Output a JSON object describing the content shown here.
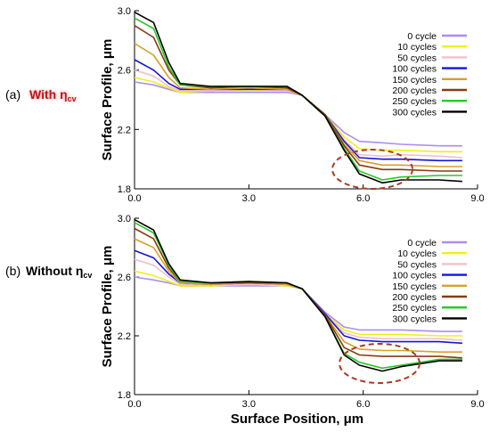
{
  "panel_labels": [
    {
      "letter": "(a)",
      "text": "With η",
      "sub": "cv"
    },
    {
      "letter": "(b)",
      "text": "Without η",
      "sub": "cv"
    }
  ],
  "colors": {
    "0 cycle": "#a98ef0",
    "10 cycles": "#f2ee17",
    "50 cycles": "#f0c0c8",
    "100 cycles": "#1414d8",
    "150 cycles": "#d8a028",
    "200 cycles": "#8a3a10",
    "250 cycles": "#28c828",
    "300 cycles": "#000000",
    "ellipse": "#a83c1e"
  },
  "chart_data": [
    {
      "type": "line",
      "panel": "(a)",
      "ylabel": "Surface Profile, μm",
      "xlabel": "",
      "xlim": [
        0,
        9
      ],
      "ylim": [
        1.8,
        3.0
      ],
      "xticks": [
        "0.0",
        "3.0",
        "6.0",
        "9.0"
      ],
      "yticks": [
        "1.8",
        "2.2",
        "2.6",
        "3.0"
      ],
      "legend": "top-right",
      "annotation": "dashed ellipse around 5.7–7.4 μm",
      "series": [
        {
          "name": "0 cycle",
          "x": [
            0,
            0.5,
            0.9,
            1.2,
            2,
            3,
            4,
            4.4,
            5,
            5.5,
            5.9,
            6.5,
            7,
            8,
            8.6
          ],
          "y": [
            2.52,
            2.5,
            2.47,
            2.45,
            2.45,
            2.45,
            2.45,
            2.43,
            2.3,
            2.18,
            2.12,
            2.11,
            2.1,
            2.09,
            2.09
          ]
        },
        {
          "name": "10 cycles",
          "x": [
            0,
            0.5,
            0.9,
            1.2,
            2,
            3,
            4,
            4.4,
            5,
            5.5,
            5.9,
            6.5,
            7,
            8,
            8.6
          ],
          "y": [
            2.55,
            2.52,
            2.48,
            2.45,
            2.46,
            2.46,
            2.46,
            2.43,
            2.3,
            2.15,
            2.07,
            2.06,
            2.06,
            2.05,
            2.05
          ]
        },
        {
          "name": "50 cycles",
          "x": [
            0,
            0.5,
            0.9,
            1.2,
            2,
            3,
            4,
            4.4,
            5,
            5.5,
            5.9,
            6.5,
            7,
            8,
            8.6
          ],
          "y": [
            2.6,
            2.56,
            2.49,
            2.46,
            2.46,
            2.47,
            2.46,
            2.43,
            2.3,
            2.13,
            2.03,
            2.02,
            2.03,
            2.02,
            2.01
          ]
        },
        {
          "name": "100 cycles",
          "x": [
            0,
            0.5,
            0.9,
            1.2,
            2,
            3,
            4,
            4.4,
            5,
            5.5,
            5.9,
            6.5,
            7,
            8,
            8.6
          ],
          "y": [
            2.67,
            2.6,
            2.51,
            2.47,
            2.47,
            2.47,
            2.47,
            2.43,
            2.3,
            2.12,
            2.01,
            2.0,
            2.0,
            1.99,
            1.99
          ]
        },
        {
          "name": "150 cycles",
          "x": [
            0,
            0.5,
            0.9,
            1.2,
            2,
            3,
            4,
            4.4,
            5,
            5.5,
            5.9,
            6.5,
            7,
            8,
            8.6
          ],
          "y": [
            2.78,
            2.7,
            2.55,
            2.48,
            2.47,
            2.48,
            2.47,
            2.43,
            2.3,
            2.1,
            1.99,
            1.96,
            1.96,
            1.95,
            1.95
          ]
        },
        {
          "name": "200 cycles",
          "x": [
            0,
            0.5,
            0.9,
            1.2,
            2,
            3,
            4,
            4.4,
            5,
            5.5,
            5.9,
            6.5,
            7,
            8,
            8.6
          ],
          "y": [
            2.9,
            2.82,
            2.6,
            2.5,
            2.48,
            2.49,
            2.48,
            2.43,
            2.3,
            2.09,
            1.96,
            1.93,
            1.93,
            1.92,
            1.92
          ]
        },
        {
          "name": "250 cycles",
          "x": [
            0,
            0.5,
            0.9,
            1.2,
            2,
            3,
            4,
            4.4,
            5,
            5.5,
            5.9,
            6.5,
            7,
            8,
            8.6
          ],
          "y": [
            2.95,
            2.88,
            2.62,
            2.5,
            2.49,
            2.49,
            2.49,
            2.43,
            2.29,
            2.07,
            1.92,
            1.86,
            1.88,
            1.89,
            1.89
          ]
        },
        {
          "name": "300 cycles",
          "x": [
            0,
            0.5,
            0.9,
            1.2,
            2,
            3,
            4,
            4.4,
            5,
            5.5,
            5.9,
            6.5,
            7,
            8,
            8.6
          ],
          "y": [
            2.99,
            2.92,
            2.65,
            2.51,
            2.49,
            2.49,
            2.49,
            2.43,
            2.29,
            2.06,
            1.9,
            1.84,
            1.86,
            1.86,
            1.85
          ]
        }
      ]
    },
    {
      "type": "line",
      "panel": "(b)",
      "ylabel": "Surface Profile, μm",
      "xlabel": "Surface Position, μm",
      "xlim": [
        0,
        9
      ],
      "ylim": [
        1.8,
        3.0
      ],
      "xticks": [
        "0.0",
        "3.0",
        "6.0",
        "9.0"
      ],
      "yticks": [
        "1.8",
        "2.2",
        "2.6",
        "3.0"
      ],
      "legend": "top-right",
      "annotation": "dashed ellipse around 5.9–7.7 μm",
      "series": [
        {
          "name": "0 cycle",
          "x": [
            0,
            0.5,
            0.9,
            1.2,
            2,
            3,
            4,
            4.4,
            5,
            5.5,
            5.9,
            6.5,
            7,
            8,
            8.6
          ],
          "y": [
            2.6,
            2.58,
            2.56,
            2.54,
            2.54,
            2.54,
            2.54,
            2.52,
            2.36,
            2.26,
            2.24,
            2.24,
            2.24,
            2.23,
            2.23
          ]
        },
        {
          "name": "10 cycles",
          "x": [
            0,
            0.5,
            0.9,
            1.2,
            2,
            3,
            4,
            4.4,
            5,
            5.5,
            5.9,
            6.5,
            7,
            8,
            8.6
          ],
          "y": [
            2.64,
            2.61,
            2.57,
            2.54,
            2.54,
            2.55,
            2.54,
            2.52,
            2.35,
            2.24,
            2.21,
            2.21,
            2.21,
            2.2,
            2.2
          ]
        },
        {
          "name": "50 cycles",
          "x": [
            0,
            0.5,
            0.9,
            1.2,
            2,
            3,
            4,
            4.4,
            5,
            5.5,
            5.9,
            6.5,
            7,
            8,
            8.6
          ],
          "y": [
            2.72,
            2.68,
            2.6,
            2.55,
            2.55,
            2.55,
            2.55,
            2.52,
            2.35,
            2.22,
            2.19,
            2.18,
            2.18,
            2.18,
            2.17
          ]
        },
        {
          "name": "100 cycles",
          "x": [
            0,
            0.5,
            0.9,
            1.2,
            2,
            3,
            4,
            4.4,
            5,
            5.5,
            5.9,
            6.5,
            7,
            8,
            8.6
          ],
          "y": [
            2.78,
            2.73,
            2.62,
            2.56,
            2.55,
            2.56,
            2.55,
            2.52,
            2.35,
            2.2,
            2.17,
            2.16,
            2.16,
            2.16,
            2.15
          ]
        },
        {
          "name": "150 cycles",
          "x": [
            0,
            0.5,
            0.9,
            1.2,
            2,
            3,
            4,
            4.4,
            5,
            5.5,
            5.9,
            6.5,
            7,
            8,
            8.6
          ],
          "y": [
            2.86,
            2.8,
            2.64,
            2.56,
            2.55,
            2.56,
            2.55,
            2.52,
            2.34,
            2.16,
            2.11,
            2.1,
            2.1,
            2.09,
            2.09
          ]
        },
        {
          "name": "200 cycles",
          "x": [
            0,
            0.5,
            0.9,
            1.2,
            2,
            3,
            4,
            4.4,
            5,
            5.5,
            5.9,
            6.5,
            7,
            8,
            8.6
          ],
          "y": [
            2.93,
            2.86,
            2.66,
            2.57,
            2.56,
            2.56,
            2.56,
            2.52,
            2.34,
            2.12,
            2.07,
            2.06,
            2.06,
            2.06,
            2.05
          ]
        },
        {
          "name": "250 cycles",
          "x": [
            0,
            0.5,
            0.9,
            1.2,
            2,
            3,
            4,
            4.4,
            5,
            5.5,
            5.9,
            6.5,
            7,
            8,
            8.6
          ],
          "y": [
            2.97,
            2.9,
            2.68,
            2.57,
            2.56,
            2.57,
            2.56,
            2.52,
            2.33,
            2.08,
            2.02,
            1.98,
            2.0,
            2.04,
            2.04
          ]
        },
        {
          "name": "300 cycles",
          "x": [
            0,
            0.5,
            0.9,
            1.2,
            2,
            3,
            4,
            4.4,
            5,
            5.5,
            5.9,
            6.5,
            7,
            8,
            8.6
          ],
          "y": [
            2.99,
            2.92,
            2.69,
            2.58,
            2.56,
            2.57,
            2.56,
            2.52,
            2.33,
            2.07,
            2.0,
            1.96,
            1.99,
            2.03,
            2.03
          ]
        }
      ]
    }
  ]
}
